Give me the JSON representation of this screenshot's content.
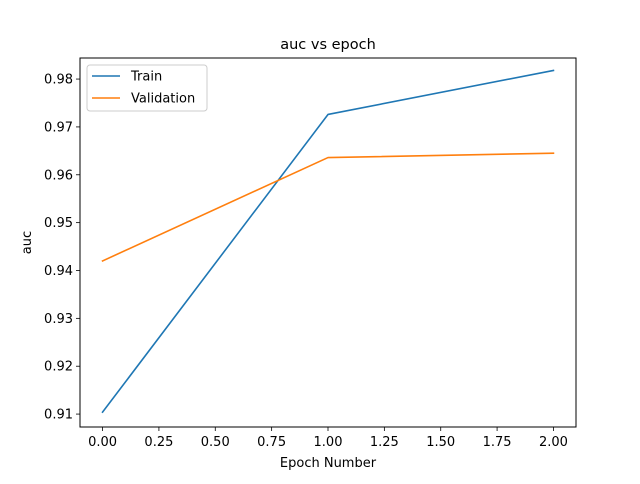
{
  "chart_data": {
    "type": "line",
    "title": "auc vs epoch",
    "xlabel": "Epoch Number",
    "ylabel": "auc",
    "xlim": [
      -0.1,
      2.1
    ],
    "ylim": [
      0.9073,
      0.9844
    ],
    "grid": false,
    "legend_position": "upper-left",
    "x_ticks": [
      0.0,
      0.25,
      0.5,
      0.75,
      1.0,
      1.25,
      1.5,
      1.75,
      2.0
    ],
    "x_tick_labels": [
      "0.00",
      "0.25",
      "0.50",
      "0.75",
      "1.00",
      "1.25",
      "1.50",
      "1.75",
      "2.00"
    ],
    "y_ticks": [
      0.91,
      0.92,
      0.93,
      0.94,
      0.95,
      0.96,
      0.97,
      0.98
    ],
    "y_tick_labels": [
      "0.91",
      "0.92",
      "0.93",
      "0.94",
      "0.95",
      "0.96",
      "0.97",
      "0.98"
    ],
    "x": [
      0,
      1,
      2
    ],
    "series": [
      {
        "name": "Train",
        "color": "#1f77b4",
        "values": [
          0.9104,
          0.9726,
          0.9818
        ]
      },
      {
        "name": "Validation",
        "color": "#ff7f0e",
        "values": [
          0.942,
          0.9636,
          0.9645
        ]
      }
    ]
  }
}
